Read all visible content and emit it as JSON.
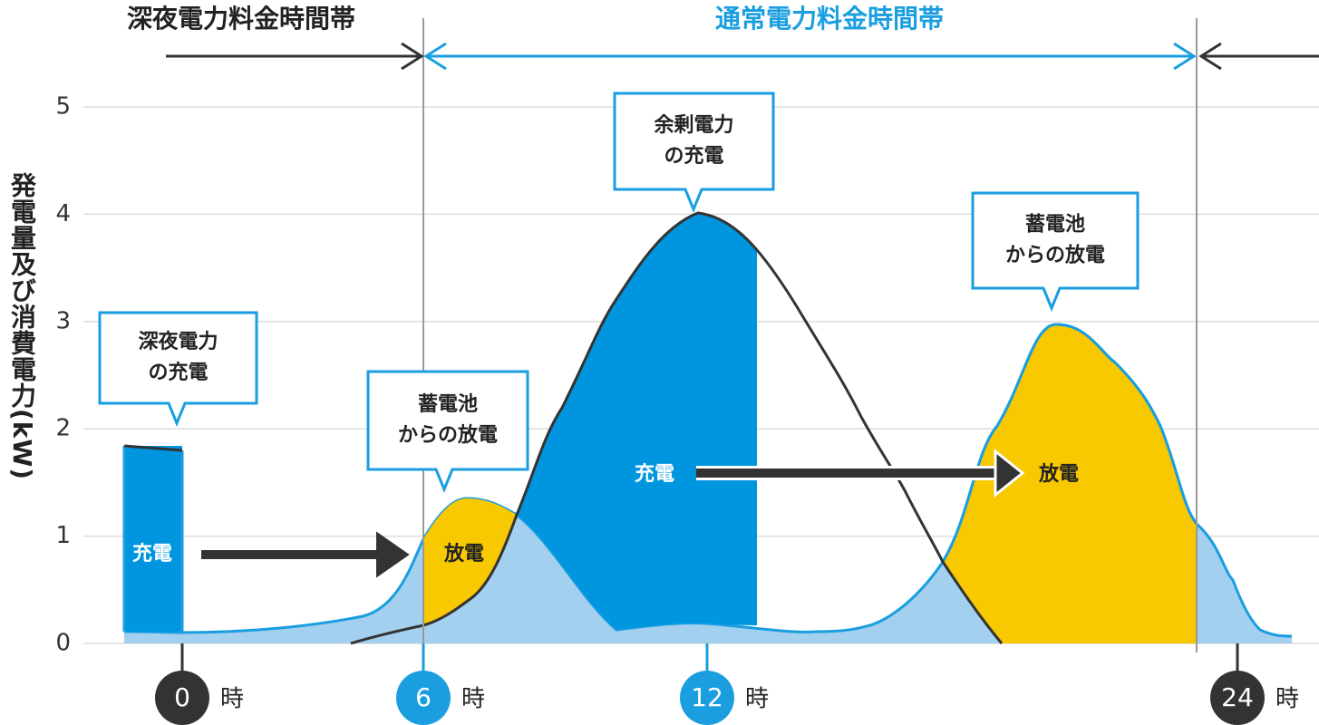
{
  "periods": {
    "night": "深夜電力料金時間帯",
    "normal": "通常電力料金時間帯"
  },
  "y_axis": {
    "label": "発電量及び消費電力(kW)",
    "ylim": [
      0,
      5
    ],
    "ticks": [
      0,
      1,
      2,
      3,
      4,
      5
    ]
  },
  "callouts": [
    {
      "lines": [
        "深夜電力",
        "の充電"
      ]
    },
    {
      "lines": [
        "蓄電池",
        "からの放電"
      ]
    },
    {
      "lines": [
        "余剰電力",
        "の充電"
      ]
    },
    {
      "lines": [
        "蓄電池",
        "からの放電"
      ]
    }
  ],
  "area_labels": [
    "充電",
    "放電",
    "充電",
    "放電"
  ],
  "hours": [
    {
      "label": "0",
      "suffix": "時"
    },
    {
      "label": "6",
      "suffix": "時"
    },
    {
      "label": "12",
      "suffix": "時"
    },
    {
      "label": "24",
      "suffix": "時"
    }
  ]
}
